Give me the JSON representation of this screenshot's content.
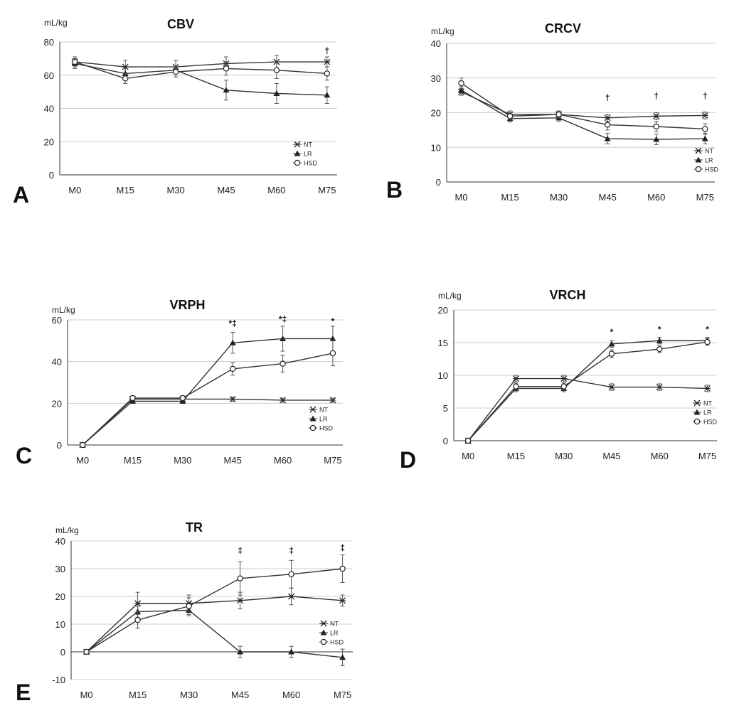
{
  "chart_data": [
    {
      "panel": "A",
      "type": "line",
      "title": "CBV",
      "ylabel": "mL/kg",
      "categories": [
        "M0",
        "M15",
        "M30",
        "M45",
        "M60",
        "M75"
      ],
      "ylim": [
        0,
        80
      ],
      "yticks": [
        0,
        20,
        40,
        60,
        80
      ],
      "grid": true,
      "legend": "bottom-right",
      "series": [
        {
          "name": "NT",
          "marker": "x",
          "values": [
            68,
            65,
            65,
            67,
            68,
            68
          ],
          "err": [
            2,
            4,
            4,
            4,
            4,
            3
          ]
        },
        {
          "name": "LR",
          "marker": "triangle",
          "values": [
            67,
            61,
            63,
            51,
            49,
            48
          ],
          "err": [
            3,
            3,
            2,
            6,
            6,
            5
          ]
        },
        {
          "name": "HSD",
          "marker": "circle",
          "values": [
            68,
            58,
            62,
            64,
            63,
            61
          ],
          "err": [
            3,
            3,
            3,
            4,
            5,
            4
          ]
        }
      ],
      "annotations": [
        {
          "category": "M75",
          "y": 73,
          "text": "†"
        }
      ]
    },
    {
      "panel": "B",
      "type": "line",
      "title": "CRCV",
      "ylabel": "mL/kg",
      "categories": [
        "M0",
        "M15",
        "M30",
        "M45",
        "M60",
        "M75"
      ],
      "ylim": [
        0,
        40
      ],
      "yticks": [
        0,
        10,
        20,
        30,
        40
      ],
      "grid": true,
      "legend": "bottom-right",
      "series": [
        {
          "name": "NT",
          "marker": "x",
          "values": [
            26,
            19.5,
            19.5,
            18.5,
            19,
            19.2
          ],
          "err": [
            1,
            1,
            1,
            1,
            1,
            1
          ]
        },
        {
          "name": "LR",
          "marker": "triangle",
          "values": [
            26.5,
            18.3,
            18.5,
            12.5,
            12.3,
            12.5
          ],
          "err": [
            1,
            1,
            1,
            1.5,
            1.5,
            1.5
          ]
        },
        {
          "name": "HSD",
          "marker": "circle",
          "values": [
            28.5,
            19,
            19.5,
            16.5,
            16,
            15.3
          ],
          "err": [
            1.5,
            1,
            1,
            1.5,
            1.5,
            1.5
          ]
        }
      ],
      "annotations": [
        {
          "category": "M45",
          "y": 23.5,
          "text": "†"
        },
        {
          "category": "M60",
          "y": 24,
          "text": "†"
        },
        {
          "category": "M75",
          "y": 24,
          "text": "†"
        }
      ]
    },
    {
      "panel": "C",
      "type": "line",
      "title": "VRPH",
      "ylabel": "mL/kg",
      "categories": [
        "M0",
        "M15",
        "M30",
        "M45",
        "M60",
        "M75"
      ],
      "ylim": [
        0,
        60
      ],
      "yticks": [
        0,
        20,
        40,
        60
      ],
      "grid": true,
      "legend": "bottom-right",
      "series": [
        {
          "name": "NT",
          "marker": "x",
          "values": [
            0,
            22,
            22,
            22,
            21.5,
            21.5
          ],
          "err": [
            0,
            1,
            1,
            1,
            1,
            1
          ]
        },
        {
          "name": "LR",
          "marker": "triangle",
          "values": [
            0,
            21,
            21,
            49,
            51,
            51
          ],
          "err": [
            0,
            1,
            1,
            5,
            6,
            6
          ]
        },
        {
          "name": "HSD",
          "marker": "circle",
          "values": [
            0,
            22.5,
            22.5,
            36.5,
            39,
            44
          ],
          "err": [
            0,
            1,
            1,
            3,
            4,
            6
          ]
        }
      ],
      "annotations": [
        {
          "category": "M45",
          "y": 57,
          "text": "*‡"
        },
        {
          "category": "M60",
          "y": 59,
          "text": "*‡"
        },
        {
          "category": "M75",
          "y": 58,
          "text": "*"
        }
      ]
    },
    {
      "panel": "D",
      "type": "line",
      "title": "VRCH",
      "ylabel": "mL/kg",
      "categories": [
        "M0",
        "M15",
        "M30",
        "M45",
        "M60",
        "M75"
      ],
      "ylim": [
        0,
        20
      ],
      "yticks": [
        0,
        5,
        10,
        15,
        20
      ],
      "grid": true,
      "legend": "bottom-right",
      "series": [
        {
          "name": "NT",
          "marker": "x",
          "values": [
            0,
            9.5,
            9.5,
            8.2,
            8.2,
            8.0
          ],
          "err": [
            0,
            0.5,
            0.5,
            0.5,
            0.5,
            0.5
          ]
        },
        {
          "name": "LR",
          "marker": "triangle",
          "values": [
            0,
            8.0,
            8.0,
            14.8,
            15.3,
            15.3
          ],
          "err": [
            0,
            0.5,
            0.5,
            0.5,
            0.5,
            0.5
          ]
        },
        {
          "name": "HSD",
          "marker": "circle",
          "values": [
            0,
            8.3,
            8.3,
            13.3,
            14.0,
            15.1
          ],
          "err": [
            0,
            0.5,
            0.5,
            0.6,
            0.5,
            0.5
          ]
        }
      ],
      "annotations": [
        {
          "category": "M45",
          "y": 16.2,
          "text": "*"
        },
        {
          "category": "M60",
          "y": 16.6,
          "text": "*"
        },
        {
          "category": "M75",
          "y": 16.6,
          "text": "*"
        }
      ]
    },
    {
      "panel": "E",
      "type": "line",
      "title": "TR",
      "ylabel": "mL/kg",
      "categories": [
        "M0",
        "M15",
        "M30",
        "M45",
        "M60",
        "M75"
      ],
      "ylim": [
        -10,
        40
      ],
      "yticks": [
        -10,
        0,
        10,
        20,
        30,
        40
      ],
      "grid": true,
      "legend": "bottom-right",
      "series": [
        {
          "name": "NT",
          "marker": "x",
          "values": [
            0,
            17.5,
            17.5,
            18.5,
            20,
            18.5
          ],
          "err": [
            0,
            4,
            3,
            3,
            3,
            2
          ]
        },
        {
          "name": "LR",
          "marker": "triangle",
          "values": [
            0,
            14.5,
            15,
            0,
            0,
            -2
          ],
          "err": [
            0,
            2,
            2,
            2,
            2,
            3
          ]
        },
        {
          "name": "HSD",
          "marker": "circle",
          "values": [
            0,
            11.5,
            16.5,
            26.5,
            28,
            30
          ],
          "err": [
            0,
            3,
            3,
            6,
            5,
            5
          ]
        }
      ],
      "annotations": [
        {
          "category": "M45",
          "y": 35.5,
          "text": "‡"
        },
        {
          "category": "M60",
          "y": 35.5,
          "text": "‡"
        },
        {
          "category": "M75",
          "y": 36.5,
          "text": "‡"
        }
      ]
    }
  ]
}
